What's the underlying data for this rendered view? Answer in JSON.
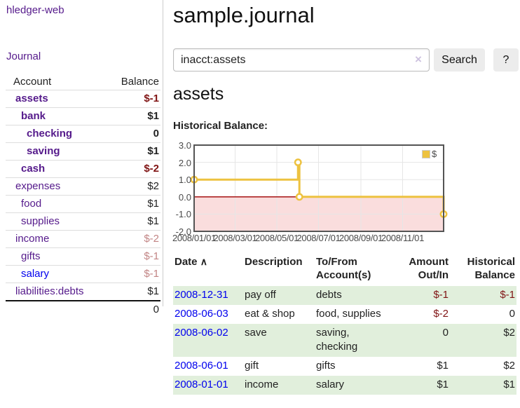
{
  "app": {
    "brand": "hledger-web",
    "nav_journal": "Journal"
  },
  "sidebar": {
    "columns": {
      "account": "Account",
      "balance": "Balance"
    },
    "accounts": [
      {
        "name": "assets",
        "depth": 1,
        "balance": "$-1",
        "bold": true
      },
      {
        "name": "bank",
        "depth": 2,
        "balance": "$1",
        "bold": true
      },
      {
        "name": "checking",
        "depth": 3,
        "balance": "0",
        "bold": true
      },
      {
        "name": "saving",
        "depth": 3,
        "balance": "$1",
        "bold": true
      },
      {
        "name": "cash",
        "depth": 2,
        "balance": "$-2",
        "bold": true
      },
      {
        "name": "expenses",
        "depth": 1,
        "balance": "$2",
        "bold": false
      },
      {
        "name": "food",
        "depth": 2,
        "balance": "$1",
        "bold": false
      },
      {
        "name": "supplies",
        "depth": 2,
        "balance": "$1",
        "bold": false
      },
      {
        "name": "income",
        "depth": 1,
        "balance": "$-2",
        "bold": false
      },
      {
        "name": "gifts",
        "depth": 2,
        "balance": "$-1",
        "bold": false
      },
      {
        "name": "salary",
        "depth": 2,
        "balance": "$-1",
        "bold": false,
        "unvisited": true
      },
      {
        "name": "liabilities:debts",
        "depth": 1,
        "balance": "$1",
        "bold": false
      }
    ],
    "total": "0"
  },
  "header": {
    "title": "sample.journal"
  },
  "search": {
    "value": "inacct:assets",
    "clear_icon": "×",
    "button": "Search",
    "help_button": "?"
  },
  "account_page": {
    "title": "assets",
    "chart_label": "Historical Balance:"
  },
  "chart_data": {
    "type": "line",
    "step": true,
    "title": "Historical Balance",
    "xlim": [
      "2008-01-01",
      "2008-12-31"
    ],
    "ylim": [
      -2,
      3
    ],
    "x_ticks": [
      {
        "date": "2008-01-01",
        "label": "2008/01/01"
      },
      {
        "date": "2008-03-01",
        "label": "2008/03/01"
      },
      {
        "date": "2008-05-01",
        "label": "2008/05/01"
      },
      {
        "date": "2008-07-01",
        "label": "2008/07/01"
      },
      {
        "date": "2008-09-01",
        "label": "2008/09/01"
      },
      {
        "date": "2008-11-01",
        "label": "2008/11/01"
      }
    ],
    "y_ticks": [
      {
        "v": 3,
        "label": "3.0"
      },
      {
        "v": 2,
        "label": "2.0"
      },
      {
        "v": 1,
        "label": "1.0"
      },
      {
        "v": 0,
        "label": "0.0"
      },
      {
        "v": -1,
        "label": "-1.0"
      },
      {
        "v": -2,
        "label": "-2.0"
      }
    ],
    "series": [
      {
        "name": "$",
        "color": "#edc240",
        "points": [
          {
            "date": "2008-01-01",
            "value": 1
          },
          {
            "date": "2008-06-01",
            "value": 2
          },
          {
            "date": "2008-06-03",
            "value": 0
          },
          {
            "date": "2008-12-31",
            "value": -1
          }
        ]
      }
    ],
    "legend_position": "top-right",
    "grid": true,
    "negative_region_color": "#fadddd",
    "zero_line_color": "#a00000",
    "grid_color": "#e6e6e6",
    "border_color": "#545454"
  },
  "register": {
    "headers": {
      "date": "Date",
      "sort_icon": "∧",
      "description": "Description",
      "tofrom": "To/From Account(s)",
      "amount": "Amount Out/In",
      "balance": "Historical Balance"
    },
    "rows": [
      {
        "date": "2008-12-31",
        "description": "pay off",
        "accounts": "debts",
        "amount": "$-1",
        "balance": "$-1"
      },
      {
        "date": "2008-06-03",
        "description": "eat & shop",
        "accounts": "food, supplies",
        "amount": "$-2",
        "balance": "0"
      },
      {
        "date": "2008-06-02",
        "description": "save",
        "accounts": "saving, checking",
        "amount": "0",
        "balance": "$2"
      },
      {
        "date": "2008-06-01",
        "description": "gift",
        "accounts": "gifts",
        "amount": "$1",
        "balance": "$2"
      },
      {
        "date": "2008-01-01",
        "description": "income",
        "accounts": "salary",
        "amount": "$1",
        "balance": "$1"
      }
    ]
  }
}
